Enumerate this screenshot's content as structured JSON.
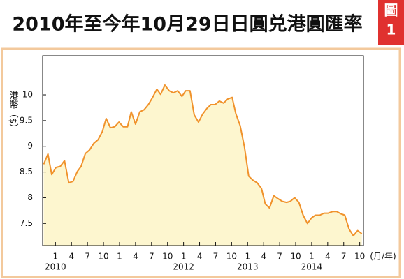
{
  "badge": [
    "圖",
    "1"
  ],
  "chart_data": {
    "type": "area",
    "title": "2010年至今年10月29日日圓兑港圓匯率",
    "ylabel": "港幣（$）",
    "xlabel": "(月/年)",
    "color": "#f0922b",
    "fill": "#fdf6cf",
    "x": [
      -2.2,
      -1.4,
      -0.7,
      0.1,
      0.9,
      1.7,
      2.5,
      3.3,
      4.1,
      4.8,
      5.6,
      6.4,
      7.2,
      8.0,
      8.8,
      9.5,
      10.3,
      11.1,
      11.9,
      12.7,
      13.5,
      14.2,
      15.0,
      15.8,
      16.6,
      17.4,
      18.2,
      19.0,
      19.7,
      20.5,
      21.3,
      22.1,
      22.9,
      23.7,
      24.4,
      25.2,
      26.0,
      26.8,
      27.6,
      28.4,
      29.1,
      29.9,
      30.7,
      31.5,
      32.3,
      33.1,
      33.8,
      34.6,
      35.4,
      36.2,
      37.0,
      37.8,
      38.6,
      39.3,
      40.1,
      40.9,
      41.7,
      42.5,
      43.3,
      44.0,
      44.8,
      45.6,
      46.4,
      47.2,
      48.0,
      48.7,
      49.5,
      50.3,
      51.1,
      51.9,
      52.7,
      53.4,
      54.2,
      55.0,
      55.8,
      56.6,
      57.4
    ],
    "values": [
      8.65,
      8.85,
      8.45,
      8.59,
      8.61,
      8.72,
      8.29,
      8.32,
      8.51,
      8.61,
      8.86,
      8.93,
      9.06,
      9.13,
      9.29,
      9.54,
      9.36,
      9.38,
      9.47,
      9.38,
      9.38,
      9.67,
      9.43,
      9.67,
      9.71,
      9.81,
      9.95,
      10.11,
      10.01,
      10.19,
      10.08,
      10.04,
      10.08,
      9.97,
      10.08,
      10.08,
      9.61,
      9.47,
      9.63,
      9.74,
      9.81,
      9.81,
      9.88,
      9.84,
      9.92,
      9.95,
      9.63,
      9.4,
      8.99,
      8.42,
      8.34,
      8.29,
      8.18,
      7.88,
      7.8,
      8.04,
      7.98,
      7.93,
      7.91,
      7.93,
      8.0,
      7.91,
      7.66,
      7.5,
      7.61,
      7.66,
      7.66,
      7.7,
      7.7,
      7.73,
      7.73,
      7.69,
      7.66,
      7.39,
      7.26,
      7.36,
      7.3
    ],
    "xlim": [
      -2.4,
      57.7
    ],
    "ylim": [
      7.07,
      10.76
    ],
    "yticks": [
      7.5,
      8,
      8.5,
      9,
      9.5,
      10
    ],
    "xticks": [
      {
        "value": 0,
        "label": "1"
      },
      {
        "value": 3,
        "label": "4"
      },
      {
        "value": 6,
        "label": "7"
      },
      {
        "value": 9,
        "label": "10"
      },
      {
        "value": 12,
        "label": "1"
      },
      {
        "value": 15,
        "label": "4"
      },
      {
        "value": 18,
        "label": "7"
      },
      {
        "value": 21,
        "label": "10"
      },
      {
        "value": 24,
        "label": "1"
      },
      {
        "value": 27,
        "label": "4"
      },
      {
        "value": 30,
        "label": "7"
      },
      {
        "value": 33,
        "label": "10"
      },
      {
        "value": 36,
        "label": "1"
      },
      {
        "value": 39,
        "label": "4"
      },
      {
        "value": 42,
        "label": "7"
      },
      {
        "value": 45,
        "label": "10"
      },
      {
        "value": 48,
        "label": "1"
      },
      {
        "value": 51,
        "label": "4"
      },
      {
        "value": 54,
        "label": "7"
      },
      {
        "value": 57,
        "label": "10"
      }
    ],
    "year_labels": [
      {
        "value": 0,
        "label": "2010"
      },
      {
        "value": 24,
        "label": "2012"
      },
      {
        "value": 36,
        "label": "2013"
      },
      {
        "value": 48,
        "label": "2014"
      }
    ]
  }
}
